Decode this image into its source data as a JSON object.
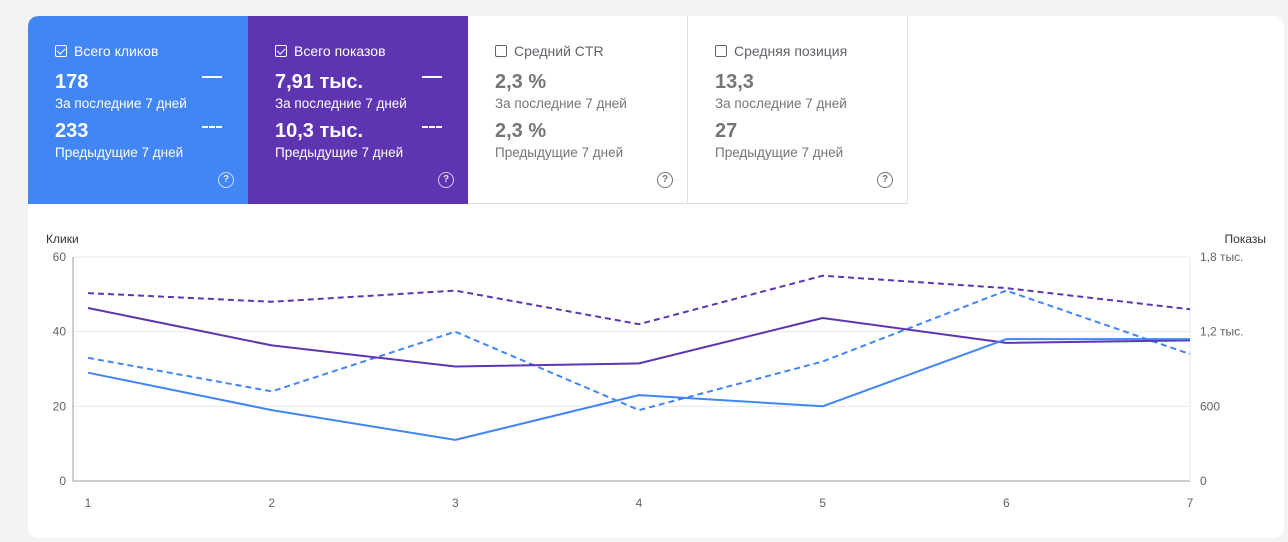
{
  "cards": [
    {
      "title": "Всего кликов",
      "checked": true,
      "current_value": "178",
      "current_label": "За последние 7 дней",
      "previous_value": "233",
      "previous_label": "Предыдущие 7 дней",
      "help": "?"
    },
    {
      "title": "Всего показов",
      "checked": true,
      "current_value": "7,91 тыс.",
      "current_label": "За последние 7 дней",
      "previous_value": "10,3 тыс.",
      "previous_label": "Предыдущие 7 дней",
      "help": "?"
    },
    {
      "title": "Средний CTR",
      "checked": false,
      "current_value": "2,3 %",
      "current_label": "За последние 7 дней",
      "previous_value": "2,3 %",
      "previous_label": "Предыдущие 7 дней",
      "help": "?"
    },
    {
      "title": "Средняя позиция",
      "checked": false,
      "current_value": "13,3",
      "current_label": "За последние 7 дней",
      "previous_value": "27",
      "previous_label": "Предыдущие 7 дней",
      "help": "?"
    }
  ],
  "colors": {
    "clicks": "#4285f4",
    "impressions": "#5e35b1"
  },
  "chart_data": {
    "type": "line",
    "x": [
      1,
      2,
      3,
      4,
      5,
      6,
      7
    ],
    "ylabel_left": "Клики",
    "ylabel_right": "Показы",
    "ylim_left": [
      0,
      60
    ],
    "ylim_right": [
      0,
      1800
    ],
    "yticks_left": [
      "0",
      "20",
      "40",
      "60"
    ],
    "yticks_right": [
      "0",
      "600",
      "1,2 тыс.",
      "1,8 тыс."
    ],
    "xticks": [
      "1",
      "2",
      "3",
      "4",
      "5",
      "6",
      "7"
    ],
    "grid": true,
    "series": [
      {
        "metric": "clicks",
        "period": "current",
        "axis": "left",
        "style": "solid",
        "color": "#4285f4",
        "values": [
          29,
          19,
          11,
          23,
          20,
          38,
          38
        ]
      },
      {
        "metric": "clicks",
        "period": "previous",
        "axis": "left",
        "style": "dashed",
        "color": "#4285f4",
        "values": [
          33,
          24,
          40,
          19,
          32,
          51,
          34
        ]
      },
      {
        "metric": "impressions",
        "period": "current",
        "axis": "right",
        "style": "solid",
        "color": "#5e35b1",
        "values": [
          1390,
          1090,
          920,
          945,
          1310,
          1110,
          1130
        ]
      },
      {
        "metric": "impressions",
        "period": "previous",
        "axis": "right",
        "style": "dashed",
        "color": "#5e35b1",
        "values": [
          1510,
          1440,
          1530,
          1260,
          1650,
          1550,
          1380
        ]
      }
    ]
  }
}
